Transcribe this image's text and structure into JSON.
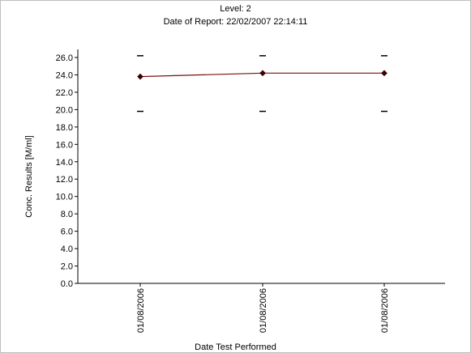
{
  "chart_data": {
    "type": "line",
    "title": "Level: 2",
    "subtitle": "Date of Report: 22/02/2007 22:14:11",
    "xlabel": "Date Test Performed",
    "ylabel": "Conc. Results [M/ml]",
    "ylim": [
      0,
      26
    ],
    "yticks": [
      "0.0",
      "2.0",
      "4.0",
      "6.0",
      "8.0",
      "10.0",
      "12.0",
      "14.0",
      "16.0",
      "18.0",
      "20.0",
      "22.0",
      "24.0",
      "26.0"
    ],
    "categories": [
      "01/08/2006",
      "01/08/2006",
      "01/08/2006"
    ],
    "series": [
      {
        "values": [
          23.8,
          24.2,
          24.2
        ],
        "color": "#7a1010",
        "marker_color": "#3a0000"
      }
    ],
    "upper_limits": [
      26.2,
      26.2,
      26.2
    ],
    "lower_limits": [
      19.8,
      19.8,
      19.8
    ],
    "grid": false,
    "legend": "none"
  }
}
